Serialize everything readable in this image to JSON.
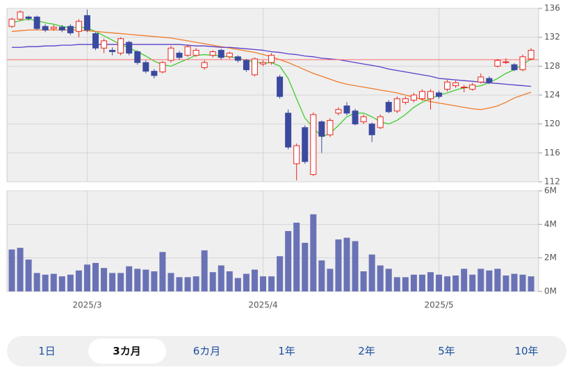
{
  "chart_data": [
    {
      "type": "candlestick",
      "open": [
        133.5,
        134.5,
        134.8,
        134.8,
        133.5,
        133.2,
        133.4,
        133.5,
        132.8,
        135,
        132.5,
        130.5,
        130.2,
        129.8,
        131.3,
        130,
        128.5,
        127.3,
        127.2,
        128.8,
        129.8,
        129.5,
        129.5,
        127.8,
        129.5,
        130.2,
        129.3,
        129.3,
        128.8,
        126.8,
        128.3,
        128.5,
        126.5,
        121.5,
        114.5,
        119.5,
        113,
        120.3,
        118.5,
        121.5,
        122.5,
        121.8,
        120.3,
        120,
        119.5,
        123,
        121.8,
        123,
        123.3,
        123.5,
        123.5,
        124.3,
        124.8,
        125.3,
        125,
        124.8,
        125.8,
        126.3,
        128,
        128.5,
        128.2,
        127.5,
        129
      ],
      "high": [
        134.7,
        135.7,
        135,
        135,
        133.8,
        133.7,
        133.7,
        133.8,
        134.5,
        135.8,
        132.7,
        131.8,
        130.6,
        132,
        131.5,
        130.2,
        128.8,
        127.6,
        128.7,
        130.8,
        130.1,
        131,
        130.5,
        128.8,
        130.2,
        130.4,
        130,
        129.5,
        129,
        129.2,
        128.8,
        129.8,
        126.8,
        122,
        117.3,
        119.8,
        121.6,
        120.5,
        120.8,
        122.3,
        123,
        122.1,
        121.3,
        120.2,
        121.3,
        123.3,
        123.8,
        123.8,
        124.3,
        124.8,
        124.8,
        124.6,
        126.1,
        126,
        125.4,
        125.7,
        127,
        126.6,
        129,
        129.1,
        128.4,
        129.6,
        130.5
      ],
      "low": [
        133.3,
        134.3,
        134.3,
        133,
        132.7,
        132.9,
        132.7,
        132.3,
        132,
        132.7,
        130.2,
        129.8,
        129.5,
        129.5,
        129.5,
        128.2,
        127,
        126.3,
        127,
        128.5,
        128.9,
        129.3,
        129.3,
        127.5,
        129.2,
        128.9,
        129,
        128.5,
        127.2,
        126.6,
        128,
        128.2,
        123.5,
        116.5,
        112.2,
        114.5,
        112.8,
        116,
        118.2,
        121.2,
        121.2,
        119.8,
        120,
        117.5,
        119.3,
        121.5,
        121.5,
        122.7,
        123,
        123.2,
        122,
        123.5,
        124.5,
        125,
        124.4,
        124.6,
        125.6,
        125.5,
        127.8,
        128.3,
        127.3,
        127.3,
        128.8
      ],
      "close": [
        134.5,
        135.5,
        134.6,
        133.2,
        133,
        133.4,
        133,
        132.6,
        134.2,
        133,
        130.5,
        131.5,
        130,
        131.8,
        129.8,
        128.5,
        127.3,
        126.7,
        128.5,
        130.5,
        129.2,
        130.7,
        130.2,
        128.5,
        130,
        129.2,
        129.8,
        128.8,
        127.5,
        129,
        128.5,
        129.5,
        123.8,
        116.8,
        117,
        114.8,
        121.3,
        118.3,
        120.5,
        122,
        121.5,
        120,
        121,
        118.5,
        121,
        121.7,
        123.5,
        123.5,
        124,
        124.5,
        124.5,
        123.8,
        125.8,
        125.7,
        125.1,
        125.4,
        126.5,
        125.8,
        128.8,
        128.6,
        127.5,
        129.3,
        130.2
      ],
      "up_color": "#e8231c",
      "down_color": "#3b4a9f",
      "series": [
        {
          "color": "#3fcc2e",
          "values": [
            134,
            134.3,
            134.5,
            134.3,
            134,
            133.8,
            133.5,
            133.3,
            133.4,
            133.3,
            132.8,
            132.2,
            131.6,
            131,
            130.5,
            130,
            129.4,
            128.7,
            128.2,
            128,
            128.5,
            129,
            129.5,
            129.6,
            129.5,
            129.4,
            129.3,
            129.1,
            128.8,
            128.6,
            128.4,
            128.5,
            128,
            126.3,
            123.5,
            120.8,
            119.5,
            118.2,
            118.7,
            119.8,
            121,
            121.5,
            121.5,
            121,
            120.3,
            120,
            120.5,
            121.3,
            122.3,
            123,
            123.5,
            124,
            124.3,
            124.7,
            125,
            125.1,
            125.3,
            125.7,
            126.3,
            127,
            127.5,
            128.2,
            129
          ]
        },
        {
          "color": "#f07a2a",
          "values": [
            132.8,
            132.9,
            133,
            133,
            133,
            133,
            133,
            133,
            133,
            132.9,
            132.8,
            132.7,
            132.6,
            132.5,
            132.4,
            132.3,
            132.2,
            132.1,
            132,
            131.9,
            131.7,
            131.5,
            131.3,
            131.1,
            130.9,
            130.7,
            130.5,
            130.3,
            130.1,
            129.9,
            129.6,
            129.3,
            128.9,
            128.5,
            128,
            127.5,
            127,
            126.6,
            126.2,
            125.8,
            125.5,
            125.3,
            125.1,
            124.9,
            124.7,
            124.5,
            124.3,
            124,
            123.7,
            123.4,
            123.1,
            122.9,
            122.7,
            122.5,
            122.3,
            122.1,
            122,
            122.2,
            122.5,
            123,
            123.6,
            124,
            124.4
          ]
        },
        {
          "color": "#5a3dc8",
          "values": [
            130.6,
            130.6,
            130.7,
            130.7,
            130.8,
            130.8,
            130.9,
            130.9,
            131,
            131,
            131,
            131,
            131,
            131,
            131,
            131,
            131,
            131,
            131,
            131,
            131,
            130.9,
            130.8,
            130.8,
            130.7,
            130.6,
            130.6,
            130.5,
            130.4,
            130.3,
            130.2,
            130,
            129.9,
            129.7,
            129.6,
            129.4,
            129.3,
            129.1,
            129,
            128.9,
            128.7,
            128.5,
            128.3,
            128.1,
            127.9,
            127.6,
            127.4,
            127.2,
            127,
            126.8,
            126.6,
            126.3,
            126.2,
            126.1,
            126,
            125.9,
            125.8,
            125.7,
            125.6,
            125.5,
            125.4,
            125.3,
            125.2
          ]
        }
      ],
      "reference_line": {
        "value": 128.9,
        "color": "#ff6b6b"
      },
      "ylim": [
        112,
        136
      ],
      "yticks": [
        112,
        116,
        120,
        124,
        128,
        132,
        136
      ],
      "grid": true
    },
    {
      "type": "bar",
      "color": "#6a72b6",
      "categories": [
        null,
        null,
        null,
        null,
        null,
        null,
        null,
        null,
        null,
        "2025/3",
        null,
        null,
        null,
        null,
        null,
        null,
        null,
        null,
        null,
        null,
        null,
        null,
        null,
        null,
        null,
        null,
        null,
        null,
        null,
        null,
        "2025/4",
        null,
        null,
        null,
        null,
        null,
        null,
        null,
        null,
        null,
        null,
        null,
        null,
        null,
        null,
        null,
        null,
        null,
        null,
        null,
        null,
        "2025/5",
        null,
        null,
        null,
        null,
        null,
        null,
        null,
        null,
        null,
        null,
        null
      ],
      "values": [
        2.5,
        2.6,
        1.9,
        1.1,
        1,
        1.05,
        0.9,
        1,
        1.25,
        1.6,
        1.7,
        1.4,
        1.1,
        1.1,
        1.5,
        1.35,
        1.3,
        1.2,
        2.35,
        1.1,
        0.85,
        0.85,
        0.9,
        2.45,
        1.15,
        1.55,
        1.2,
        0.8,
        1.05,
        1.3,
        0.9,
        0.9,
        2.1,
        3.6,
        4.1,
        2.9,
        4.6,
        1.85,
        1.35,
        3.1,
        3.2,
        3,
        1.2,
        2.2,
        1.55,
        1.35,
        0.85,
        0.85,
        1,
        1,
        1.15,
        1,
        0.9,
        0.95,
        1.35,
        1,
        1.35,
        1.25,
        1.35,
        0.95,
        1.05,
        1,
        0.9
      ],
      "ylim": [
        0,
        6
      ],
      "yticks": [
        {
          "value": 0,
          "label": "0M"
        },
        {
          "value": 2,
          "label": "2M"
        },
        {
          "value": 4,
          "label": "4M"
        },
        {
          "value": 6,
          "label": "6M"
        }
      ],
      "grid": true
    }
  ],
  "tabs": {
    "items": [
      "1日",
      "3カ月",
      "6カ月",
      "1年",
      "2年",
      "5年",
      "10年"
    ],
    "selected": 1
  }
}
